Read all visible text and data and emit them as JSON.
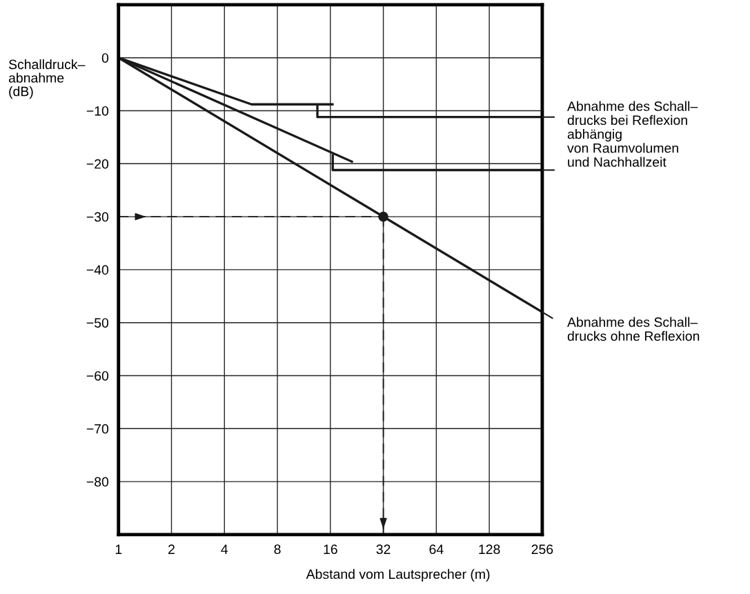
{
  "chart_data": {
    "type": "line",
    "xlabel": "Abstand vom Lautsprecher (m)",
    "ylabel": "Schalldruck–\nabnahme\n(dB)",
    "log": "x",
    "xlim": [
      1,
      256
    ],
    "xticks": [
      1,
      2,
      4,
      8,
      16,
      32,
      64,
      128,
      256
    ],
    "ylim": [
      -90,
      10
    ],
    "yticks": [
      {
        "value": 10,
        "label": null
      },
      0,
      -10,
      -20,
      -30,
      -40,
      -50,
      -60,
      -70,
      -80,
      {
        "value": -90,
        "label": null
      }
    ],
    "grid": true,
    "marker": "none",
    "line_style": "solid",
    "series": [
      {
        "color": "#1a1a1a",
        "x": [
          1,
          256
        ],
        "values": [
          0,
          -48
        ]
      },
      {
        "color": "#1a1a1a",
        "x": [
          1,
          5.7,
          16.7
        ],
        "values": [
          0,
          -8.8,
          -8.8
        ]
      },
      {
        "color": "#1a1a1a",
        "x": [
          13.5,
          13.5,
          256
        ],
        "values": [
          -8.8,
          -11.2,
          -11.2
        ]
      },
      {
        "color": "#1a1a1a",
        "x": [
          1,
          21.5
        ],
        "values": [
          0,
          -19.7
        ]
      },
      {
        "color": "#1a1a1a",
        "x": [
          16.5,
          16.5,
          256
        ],
        "values": [
          -18.2,
          -21.2,
          -21.2
        ]
      },
      {
        "color": "#1a1a1a",
        "x": [
          1,
          32
        ],
        "values": [
          -30,
          -30
        ],
        "line_style": "dashed"
      },
      {
        "color": "#1a1a1a",
        "x": [
          32,
          32
        ],
        "values": [
          -30,
          -90
        ],
        "line_style": "dashed"
      },
      {
        "color": "#1a1a1a",
        "type": "scatter",
        "marker": "circle",
        "x": [
          32
        ],
        "values": [
          -30
        ]
      }
    ],
    "annotations": [
      {
        "text": "Abnahme des Schall–\ndrucks bei Reflexion\nabhängig\nvon Raumvolumen\nund Nachhallzeit",
        "x": 256,
        "y": -11.2
      },
      {
        "text": "Abnahme des Schall–\ndrucks ohne Reflexion",
        "x": 256,
        "y": -48
      }
    ]
  }
}
